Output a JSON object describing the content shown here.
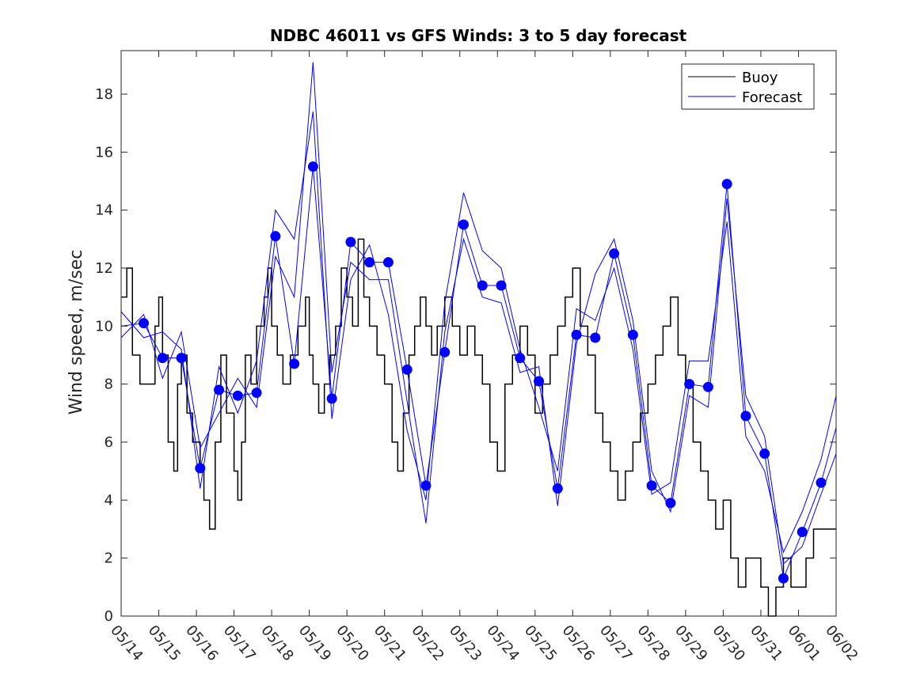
{
  "chart_data": {
    "type": "line",
    "title": "NDBC 46011 vs GFS Winds: 3 to 5 day forecast",
    "xlabel": "",
    "ylabel": "Wind speed, m/sec",
    "ylim": [
      0,
      19.5
    ],
    "xlim": [
      0,
      19
    ],
    "yticks": [
      0,
      2,
      4,
      6,
      8,
      10,
      12,
      14,
      16,
      18
    ],
    "xtick_labels": [
      "05/14",
      "05/15",
      "05/16",
      "05/17",
      "05/18",
      "05/19",
      "05/20",
      "05/21",
      "05/22",
      "05/23",
      "05/24",
      "05/25",
      "05/26",
      "05/27",
      "05/28",
      "05/29",
      "05/30",
      "05/31",
      "06/01",
      "06/02"
    ],
    "grid": false,
    "legend": {
      "position": "top-right",
      "entries": [
        "Buoy",
        "Forecast"
      ]
    },
    "colors": {
      "buoy": "#000000",
      "forecast": "#0000ff",
      "axis": "#262626"
    },
    "series": [
      {
        "name": "Buoy",
        "color": "#000000",
        "x": [
          0,
          0.15,
          0.3,
          0.5,
          0.7,
          0.9,
          1.0,
          1.1,
          1.25,
          1.4,
          1.5,
          1.6,
          1.75,
          1.9,
          2.0,
          2.1,
          2.2,
          2.35,
          2.5,
          2.65,
          2.8,
          3.0,
          3.1,
          3.2,
          3.3,
          3.45,
          3.6,
          3.8,
          3.9,
          4.0,
          4.15,
          4.3,
          4.5,
          4.7,
          4.9,
          5.0,
          5.1,
          5.25,
          5.4,
          5.55,
          5.7,
          5.85,
          6.0,
          6.15,
          6.3,
          6.45,
          6.6,
          6.8,
          7.0,
          7.2,
          7.35,
          7.5,
          7.65,
          7.8,
          7.95,
          8.1,
          8.25,
          8.4,
          8.6,
          8.8,
          9.0,
          9.2,
          9.4,
          9.6,
          9.8,
          10.0,
          10.2,
          10.4,
          10.6,
          10.8,
          11.0,
          11.2,
          11.4,
          11.6,
          11.8,
          12.0,
          12.2,
          12.4,
          12.6,
          12.8,
          13.0,
          13.2,
          13.4,
          13.6,
          13.8,
          14.0,
          14.2,
          14.4,
          14.6,
          14.8,
          15.0,
          15.2,
          15.4,
          15.6,
          15.8,
          16.0,
          16.2,
          16.4,
          16.6,
          16.8,
          17.0,
          17.2,
          17.4,
          17.6,
          17.8,
          18.0,
          18.2,
          18.4
        ],
        "values": [
          11,
          12,
          9,
          8,
          8,
          10,
          11,
          9,
          6,
          5,
          8,
          9,
          7,
          6,
          6,
          5,
          4,
          3,
          6,
          9,
          7,
          5,
          4,
          6,
          9,
          8,
          10,
          11,
          12,
          10,
          9,
          8,
          9,
          10,
          11,
          9,
          8,
          7,
          8,
          9,
          10,
          12,
          11,
          10,
          13,
          11,
          10,
          9,
          8,
          6,
          5,
          7,
          9,
          10,
          11,
          10,
          9,
          10,
          11,
          10,
          9,
          10,
          9,
          8,
          6,
          5,
          8,
          9,
          10,
          9,
          7,
          8,
          9,
          10,
          11,
          12,
          10,
          9,
          7,
          6,
          5,
          4,
          5,
          6,
          7,
          8,
          9,
          10,
          11,
          9,
          8,
          6,
          5,
          4,
          3,
          4,
          2,
          1,
          2,
          2,
          1,
          0,
          1,
          2,
          1,
          1,
          2,
          3
        ]
      },
      {
        "name": "Forecast",
        "color": "#0000ff",
        "x": [
          0,
          0.6,
          1.1,
          1.6,
          2.1,
          2.6,
          3.1,
          3.6,
          4.1,
          4.6,
          5.1,
          5.6,
          6.1,
          6.6,
          7.1,
          7.6,
          8.1,
          8.6,
          9.1,
          9.6,
          10.1,
          10.6,
          11.1,
          11.6,
          12.1,
          12.6,
          13.1,
          13.6,
          14.1,
          14.6,
          15.1,
          15.6,
          16.1,
          16.6,
          17.1,
          17.6,
          18.1,
          18.6,
          19.0
        ],
        "values": [
          10,
          10.1,
          8.9,
          8.9,
          5.1,
          7.8,
          7.6,
          7.7,
          13.1,
          8.7,
          15.5,
          7.5,
          12.9,
          12.2,
          12.2,
          8.5,
          4.5,
          9.1,
          13.5,
          11.4,
          11.4,
          8.9,
          8.1,
          4.4,
          9.7,
          9.6,
          12.5,
          9.7,
          4.5,
          3.9,
          8.0,
          7.9,
          14.9,
          6.9,
          5.6,
          1.3,
          2.9,
          4.6,
          6.5
        ]
      },
      {
        "name": "",
        "color": "#0000ff",
        "x": [
          0,
          0.6,
          1.1,
          1.6,
          2.1,
          2.6,
          3.1,
          3.6,
          4.1,
          4.6,
          5.1,
          5.6,
          6.1,
          6.6,
          7.1,
          7.6,
          8.1,
          8.6,
          9.1,
          9.6,
          10.1,
          10.6,
          11.1,
          11.6,
          12.1,
          12.6,
          13.1,
          13.6,
          14.1,
          14.6,
          15.1,
          15.6,
          16.1,
          16.6,
          17.1,
          17.6,
          18.1,
          18.6,
          19.0
        ],
        "values": [
          10.5,
          9.6,
          9.8,
          9.2,
          4.4,
          8.6,
          7.0,
          8.8,
          14.0,
          13.0,
          17.4,
          6.8,
          11.6,
          12.8,
          10.4,
          6.4,
          4.0,
          10.8,
          14.6,
          12.6,
          12.0,
          9.2,
          7.2,
          5.0,
          10.6,
          10.2,
          12.0,
          9.2,
          4.2,
          4.6,
          8.8,
          8.8,
          13.6,
          6.2,
          5.0,
          2.2,
          3.6,
          5.4,
          7.6
        ]
      },
      {
        "name": "",
        "color": "#0000ff",
        "x": [
          0,
          0.6,
          1.1,
          1.6,
          2.1,
          2.6,
          3.1,
          3.6,
          4.1,
          4.6,
          5.1,
          5.6,
          6.1,
          6.6,
          7.1,
          7.6,
          8.1,
          8.6,
          9.1,
          9.6,
          10.1,
          10.6,
          11.1,
          11.6,
          12.1,
          12.6,
          13.1,
          13.6,
          14.1,
          14.6,
          15.1,
          15.6,
          16.1,
          16.6,
          17.1,
          17.6,
          18.1,
          18.6,
          19.0
        ],
        "values": [
          9.6,
          10.4,
          8.2,
          9.8,
          5.8,
          7.0,
          8.2,
          7.2,
          12.4,
          11.0,
          19.1,
          8.4,
          12.2,
          11.6,
          11.6,
          7.4,
          3.2,
          9.8,
          13.0,
          11.0,
          10.8,
          8.4,
          8.6,
          3.8,
          9.4,
          11.8,
          13.0,
          10.2,
          5.0,
          3.6,
          7.6,
          7.2,
          14.4,
          7.6,
          6.2,
          1.8,
          2.4,
          4.2,
          5.6
        ]
      }
    ],
    "markers": {
      "series": "Forecast",
      "color": "#0000ff",
      "x": [
        0.6,
        1.1,
        1.6,
        2.1,
        2.6,
        3.1,
        3.6,
        4.1,
        4.6,
        5.1,
        5.6,
        6.1,
        6.6,
        7.1,
        7.6,
        8.1,
        8.6,
        9.1,
        9.6,
        10.1,
        10.6,
        11.1,
        11.6,
        12.1,
        12.6,
        13.1,
        13.6,
        14.1,
        14.6,
        15.1,
        15.6,
        16.1,
        16.6,
        17.1,
        17.6,
        18.1,
        18.6
      ],
      "values": [
        10.1,
        8.9,
        8.9,
        5.1,
        7.8,
        7.6,
        7.7,
        13.1,
        8.7,
        15.5,
        7.5,
        12.9,
        12.2,
        12.2,
        8.5,
        4.5,
        9.1,
        13.5,
        11.4,
        11.4,
        8.9,
        8.1,
        4.4,
        9.7,
        9.6,
        12.5,
        9.7,
        4.5,
        3.9,
        8.0,
        7.9,
        14.9,
        6.9,
        5.6,
        1.3,
        2.9,
        4.6
      ]
    }
  }
}
